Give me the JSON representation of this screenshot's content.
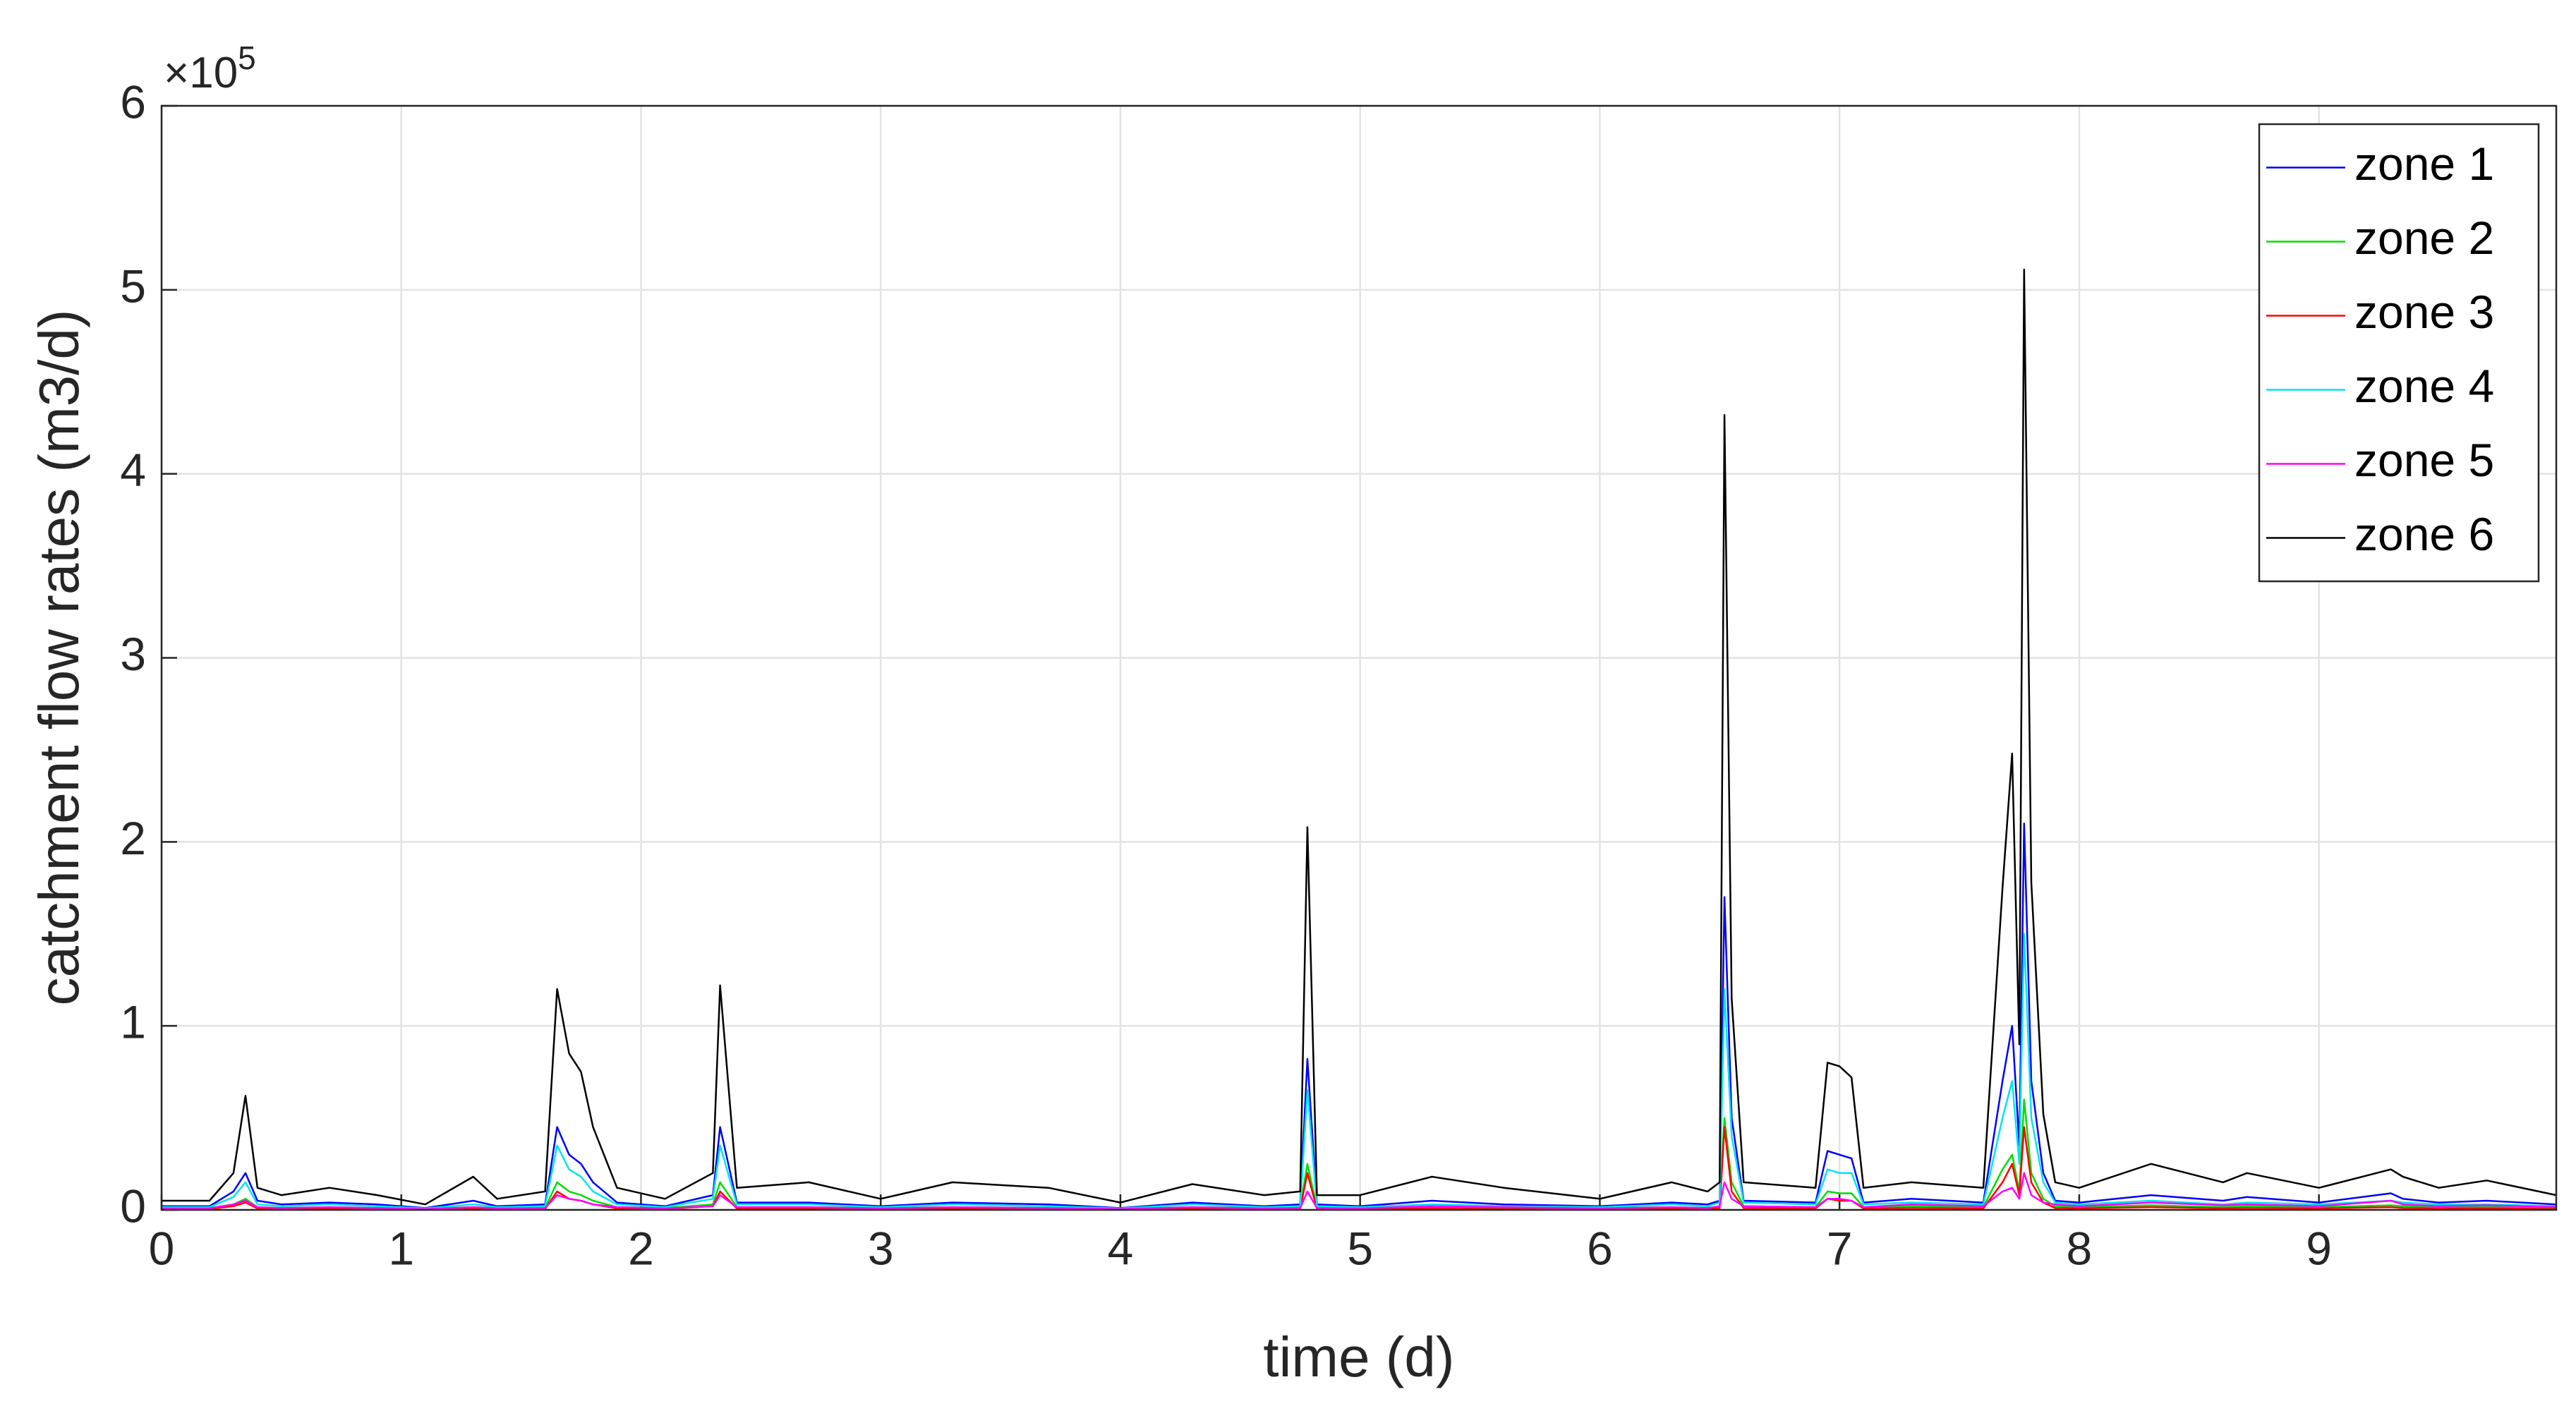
{
  "chart_data": {
    "type": "line",
    "xlabel": "time (d)",
    "ylabel": "catchment flow rates (m3/d)",
    "y_exponent": {
      "base": "×10",
      "power": "5"
    },
    "x": [
      0,
      0.2,
      0.3,
      0.35,
      0.4,
      0.5,
      0.7,
      0.9,
      1.1,
      1.3,
      1.4,
      1.6,
      1.65,
      1.7,
      1.75,
      1.8,
      1.9,
      2.1,
      2.3,
      2.33,
      2.4,
      2.7,
      3.0,
      3.3,
      3.7,
      4.0,
      4.3,
      4.6,
      4.75,
      4.78,
      4.82,
      5.0,
      5.3,
      5.6,
      6.0,
      6.3,
      6.45,
      6.5,
      6.52,
      6.55,
      6.6,
      6.9,
      6.95,
      7.0,
      7.05,
      7.1,
      7.3,
      7.6,
      7.68,
      7.72,
      7.75,
      7.77,
      7.8,
      7.85,
      7.9,
      8.0,
      8.3,
      8.6,
      8.7,
      9.0,
      9.3,
      9.35,
      9.5,
      9.7,
      9.99
    ],
    "series": [
      {
        "name": "zone 1",
        "color": "#0000ff",
        "values": [
          2000,
          2000,
          10000,
          20000,
          5000,
          3000,
          4000,
          3000,
          1000,
          5000,
          2000,
          3000,
          45000,
          30000,
          25000,
          15000,
          4000,
          2000,
          8000,
          45000,
          4000,
          4000,
          2000,
          4000,
          3000,
          1000,
          4000,
          2000,
          3000,
          82000,
          3000,
          2000,
          5000,
          3000,
          2000,
          4000,
          3000,
          5000,
          170000,
          50000,
          5000,
          4000,
          32000,
          30000,
          28000,
          4000,
          6000,
          4000,
          70000,
          100000,
          35000,
          210000,
          70000,
          20000,
          5000,
          4000,
          8000,
          5000,
          7000,
          4000,
          9000,
          6000,
          4000,
          5000,
          3000
        ]
      },
      {
        "name": "zone 2",
        "color": "#00dd00",
        "values": [
          1000,
          1000,
          3000,
          6000,
          1500,
          1000,
          1500,
          1000,
          500,
          1500,
          1000,
          1000,
          15000,
          10000,
          8000,
          5000,
          1500,
          1000,
          3000,
          15000,
          1500,
          1500,
          1000,
          1500,
          1000,
          500,
          1500,
          1000,
          1000,
          25000,
          1000,
          1000,
          1500,
          1000,
          1000,
          1500,
          1000,
          2000,
          50000,
          15000,
          2000,
          1500,
          10000,
          9000,
          9000,
          1500,
          2000,
          1500,
          22000,
          30000,
          10000,
          60000,
          20000,
          6000,
          2000,
          1500,
          2500,
          1500,
          2000,
          1500,
          2500,
          2000,
          1500,
          1500,
          1000
        ]
      },
      {
        "name": "zone 3",
        "color": "#ff0000",
        "values": [
          500,
          500,
          2000,
          4000,
          800,
          500,
          800,
          500,
          300,
          800,
          500,
          500,
          10000,
          6000,
          5000,
          3000,
          800,
          500,
          2000,
          10000,
          800,
          800,
          500,
          800,
          500,
          300,
          800,
          500,
          500,
          20000,
          500,
          500,
          800,
          500,
          500,
          800,
          500,
          1000,
          45000,
          10000,
          1000,
          800,
          6000,
          5000,
          5000,
          800,
          1000,
          800,
          15000,
          25000,
          8000,
          45000,
          15000,
          4000,
          1000,
          800,
          1500,
          800,
          1000,
          800,
          1500,
          1000,
          800,
          800,
          500
        ]
      },
      {
        "name": "zone 4",
        "color": "#00e5ee",
        "values": [
          1500,
          1500,
          7000,
          15000,
          3000,
          2000,
          3000,
          2000,
          800,
          3000,
          1500,
          2000,
          35000,
          22000,
          18000,
          10000,
          3000,
          1500,
          6000,
          35000,
          3000,
          3000,
          1500,
          3000,
          2000,
          800,
          3000,
          1500,
          2000,
          65000,
          2000,
          1500,
          3000,
          2000,
          1500,
          3000,
          2000,
          4000,
          120000,
          40000,
          4000,
          3000,
          22000,
          20000,
          20000,
          3000,
          4000,
          3000,
          50000,
          70000,
          25000,
          150000,
          50000,
          15000,
          4000,
          3000,
          5000,
          3000,
          4000,
          3000,
          5000,
          4000,
          3000,
          3000,
          2000
        ]
      },
      {
        "name": "zone 5",
        "color": "#ff00ff",
        "values": [
          800,
          800,
          3000,
          5000,
          1500,
          1000,
          1500,
          1000,
          500,
          1500,
          800,
          1000,
          8000,
          6000,
          5000,
          3000,
          1500,
          800,
          2000,
          8000,
          1500,
          1500,
          800,
          1500,
          1000,
          500,
          1500,
          800,
          1000,
          10000,
          1000,
          800,
          2000,
          1500,
          800,
          1500,
          1000,
          2000,
          15000,
          6000,
          2000,
          1500,
          6000,
          6000,
          5000,
          1500,
          3000,
          2000,
          10000,
          12000,
          6000,
          20000,
          8000,
          4000,
          3000,
          2000,
          4000,
          2500,
          3000,
          2000,
          5000,
          3000,
          2000,
          2500,
          1500
        ]
      },
      {
        "name": "zone 6",
        "color": "#000000",
        "values": [
          5000,
          5000,
          20000,
          62000,
          12000,
          8000,
          12000,
          8000,
          3000,
          18000,
          6000,
          10000,
          120000,
          85000,
          75000,
          45000,
          12000,
          6000,
          20000,
          122000,
          12000,
          15000,
          6000,
          15000,
          12000,
          4000,
          14000,
          8000,
          10000,
          208000,
          8000,
          8000,
          18000,
          12000,
          6000,
          15000,
          10000,
          15000,
          432000,
          115000,
          15000,
          12000,
          80000,
          78000,
          72000,
          12000,
          15000,
          12000,
          175000,
          248000,
          90000,
          511000,
          178000,
          52000,
          15000,
          12000,
          25000,
          15000,
          20000,
          12000,
          22000,
          18000,
          12000,
          16000,
          8000
        ]
      }
    ],
    "xlim": [
      0,
      9.99
    ],
    "xticks": [
      0,
      1,
      2,
      3,
      4,
      5,
      6,
      7,
      8,
      9
    ],
    "ylim": [
      0,
      600000
    ],
    "yticks": [
      0,
      {
        "value": 100000,
        "label": "1"
      },
      {
        "value": 200000,
        "label": "2"
      },
      {
        "value": 300000,
        "label": "3"
      },
      {
        "value": 400000,
        "label": "4"
      },
      {
        "value": 500000,
        "label": "5"
      },
      {
        "value": 600000,
        "label": "6"
      }
    ],
    "grid": true,
    "legend": "northeast"
  }
}
